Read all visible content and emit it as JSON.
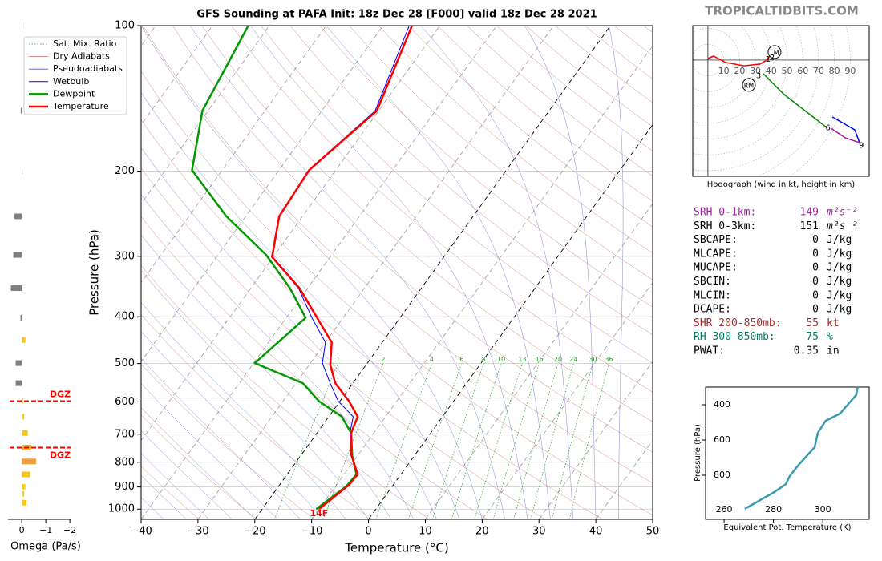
{
  "site": "TROPICALTIDBITS.COM",
  "chart_data": [
    {
      "type": "skewt",
      "title": "GFS Sounding at PAFA Init: 18z Dec 28 [F000] valid 18z Dec 28 2021",
      "xlabel": "Temperature (°C)",
      "ylabel": "Pressure (hPa)",
      "xlim": [
        -40,
        50
      ],
      "ylim": [
        1050,
        100
      ],
      "log_y": true,
      "xticks": [
        {
          "value": -40,
          "label": "−40"
        },
        {
          "value": -30,
          "label": "−30"
        },
        {
          "value": -20,
          "label": "−20"
        },
        {
          "value": -10,
          "label": "−10"
        },
        0,
        10,
        20,
        30,
        40,
        50
      ],
      "yticks": [
        100,
        200,
        300,
        400,
        500,
        600,
        700,
        800,
        900,
        1000
      ],
      "grid": true,
      "background": [
        {
          "name": "Sat. Mix. Ratio",
          "color": "#2a9d2a"
        },
        {
          "name": "Dry Adiabats",
          "color": "#c86464"
        },
        {
          "name": "Pseudoadiabats",
          "color": "#5050c8"
        }
      ],
      "mixing_ratio_labels": [
        1,
        2,
        4,
        6,
        8,
        10,
        13,
        16,
        20,
        24,
        30,
        36
      ],
      "series": [
        {
          "name": "Wetbulb",
          "color": "#0000ff",
          "pressure": [
            1000,
            891,
            848,
            766,
            696,
            644,
            598,
            549,
            499,
            452,
            402,
            350,
            301,
            248,
            199,
            150,
            100
          ],
          "values": [
            -10,
            -8,
            -7.8,
            -11.5,
            -14.2,
            -15.7,
            -20.3,
            -24,
            -27.9,
            -30,
            -35.5,
            -41.5,
            -50.3,
            -54.2,
            -54.8,
            -50.6,
            -55.4
          ]
        },
        {
          "name": "Dewpoint",
          "color": "#009900",
          "pressure": [
            1000,
            899,
            848,
            776,
            696,
            644,
            598,
            549,
            499,
            402,
            350,
            298,
            248,
            199,
            150,
            100
          ],
          "values": [
            -10.5,
            -8.1,
            -7.8,
            -10.9,
            -14,
            -17.7,
            -23.7,
            -28.8,
            -39.8,
            -36.6,
            -43,
            -51.5,
            -63.4,
            -75.3,
            -81,
            -83.7
          ]
        },
        {
          "name": "Temperature",
          "color": "#ff0000",
          "pressure": [
            1000,
            891,
            848,
            766,
            696,
            644,
            598,
            549,
            503,
            452,
            350,
            301,
            248,
            199,
            150,
            100
          ],
          "values": [
            -10,
            -7.8,
            -7.6,
            -11.5,
            -14,
            -14.9,
            -18.4,
            -23.1,
            -26.3,
            -28.9,
            -41.3,
            -50.2,
            -54.1,
            -54.7,
            -50.3,
            -54.9
          ]
        }
      ],
      "annotations": [
        "14F"
      ]
    },
    {
      "type": "barh",
      "xlabel": "Omega (Pa/s)",
      "xlim": [
        0.57,
        -2.03
      ],
      "xticks": [
        0,
        {
          "value": -1,
          "label": "−1"
        },
        {
          "value": -2,
          "label": "−2"
        }
      ],
      "pressure": [
        100,
        150,
        200,
        248,
        298,
        349,
        402,
        447,
        499,
        549,
        598,
        644,
        696,
        746,
        797,
        848,
        899,
        930,
        970
      ],
      "values": [
        -0.03,
        0.04,
        -0.03,
        0.3,
        0.35,
        0.45,
        0.05,
        -0.15,
        0.25,
        0.25,
        -0.05,
        -0.1,
        -0.25,
        -0.4,
        -0.6,
        -0.35,
        -0.15,
        -0.1,
        -0.2
      ],
      "colors": [
        "#f5d020",
        "#808080",
        "#f5d020",
        "#808080",
        "#808080",
        "#808080",
        "#808080",
        "#f5c518",
        "#808080",
        "#808080",
        "#f5c518",
        "#f5c518",
        "#f5c518",
        "#f5b030",
        "#f39c3a",
        "#f5c518",
        "#f5d020",
        "#f5d020",
        "#f5c518"
      ],
      "dgz": {
        "pressure": [
          598,
          746
        ],
        "labels": [
          "DGZ",
          "DGZ"
        ]
      }
    },
    {
      "type": "hodograph",
      "xlabel": "Hodograph (wind in kt, height in km)",
      "xlim": [
        -9.6,
        102
      ],
      "ylim": [
        -73.6,
        21.8
      ],
      "rings": [
        10,
        20,
        30,
        40,
        50,
        60,
        70,
        80,
        90
      ],
      "series": [
        {
          "color": "#ff0000",
          "u": [
            0,
            3.6,
            11.2,
            22.8,
            33,
            37.1,
            39.1
          ],
          "v": [
            1,
            2.5,
            -1.5,
            -3.6,
            -2.5,
            0,
            2.5
          ]
        },
        {
          "color": "#008800",
          "u": [
            35,
            48.2,
            75.6
          ],
          "v": [
            -8.6,
            -21.8,
            -43.1
          ]
        },
        {
          "color": "#0000ff",
          "u": [
            78.7,
            92.9,
            95.9
          ],
          "v": [
            -36,
            -44.2,
            -52.3
          ]
        },
        {
          "color": "#a020a0",
          "u": [
            77.7,
            86.8,
            95.9
          ],
          "v": [
            -43.1,
            -49.2,
            -52.3
          ]
        }
      ],
      "height_labels": [
        {
          "label": "1",
          "u": 38,
          "v": 0.5
        },
        {
          "label": "2",
          "u": 40.6,
          "v": 1.5
        },
        {
          "label": "3",
          "u": 32,
          "v": -10
        },
        {
          "label": "6",
          "u": 76,
          "v": -43
        },
        {
          "label": "9",
          "u": 97,
          "v": -54
        }
      ],
      "motion": [
        {
          "label": "LM",
          "u": 42.1,
          "v": 5.1
        },
        {
          "label": "RM",
          "u": 25.9,
          "v": -15.7
        }
      ]
    },
    {
      "type": "line",
      "xlabel": "Equivalent Pot. Temperature (K)",
      "ylabel": "Pressure (hPa)",
      "xlim": [
        252.5,
        318.8
      ],
      "ylim": [
        1050,
        300
      ],
      "xticks": [
        260,
        280,
        300
      ],
      "yticks": [
        400,
        600,
        800
      ],
      "color": "#3a9ab0",
      "values": [
        268.4,
        280.4,
        285,
        286.6,
        290.2,
        296.7,
        298,
        301.2,
        307,
        313.5,
        314.2
      ],
      "pressure": [
        991,
        895,
        850,
        805,
        741,
        641,
        559,
        491,
        450,
        345,
        300
      ]
    }
  ],
  "stats": [
    {
      "label": "SRH 0-1km:",
      "value": 149,
      "unit": "m²s⁻²",
      "color": "#a020a0"
    },
    {
      "label": "SRH 0-3km:",
      "value": 151,
      "unit": "m²s⁻²",
      "color": "#000000"
    },
    {
      "label": "SBCAPE:",
      "value": 0,
      "unit": "J/kg",
      "color": "#000000"
    },
    {
      "label": "MLCAPE:",
      "value": 0,
      "unit": "J/kg",
      "color": "#000000"
    },
    {
      "label": "MUCAPE:",
      "value": 0,
      "unit": "J/kg",
      "color": "#000000"
    },
    {
      "label": "SBCIN:",
      "value": 0,
      "unit": "J/kg",
      "color": "#000000"
    },
    {
      "label": "MLCIN:",
      "value": 0,
      "unit": "J/kg",
      "color": "#000000"
    },
    {
      "label": "DCAPE:",
      "value": 0,
      "unit": "J/kg",
      "color": "#000000"
    },
    {
      "label": "SHR 200-850mb:",
      "value": 55,
      "unit": "kt",
      "color": "#a52a2a"
    },
    {
      "label": "RH 300-850mb:",
      "value": 75,
      "unit": "%",
      "color": "#008060"
    },
    {
      "label": "PWAT:",
      "value": 0.35,
      "unit": "in",
      "color": "#000000"
    }
  ]
}
